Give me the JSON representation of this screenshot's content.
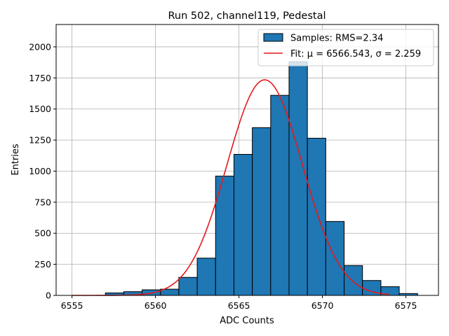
{
  "chart_data": {
    "type": "bar",
    "title": "Run 502, channel119, Pedestal",
    "xlabel": "ADC Counts",
    "ylabel": "Entries",
    "xlim": [
      6554.05,
      6576.95
    ],
    "ylim": [
      0,
      2180
    ],
    "xticks": [
      6555,
      6560,
      6565,
      6570,
      6575
    ],
    "yticks": [
      0,
      250,
      500,
      750,
      1000,
      1250,
      1500,
      1750,
      2000
    ],
    "grid": true,
    "legend_position": "top-right",
    "bar_color": "#1f77b4",
    "fit_color": "#e41a1c",
    "histogram": {
      "name": "Samples: RMS=2.34",
      "bin_width": 1.1,
      "bins": [
        {
          "start": 6557.0,
          "count": 20
        },
        {
          "start": 6558.1,
          "count": 30
        },
        {
          "start": 6559.2,
          "count": 45
        },
        {
          "start": 6560.3,
          "count": 50
        },
        {
          "start": 6561.4,
          "count": 145
        },
        {
          "start": 6562.5,
          "count": 300
        },
        {
          "start": 6563.6,
          "count": 960
        },
        {
          "start": 6564.7,
          "count": 1135
        },
        {
          "start": 6565.8,
          "count": 1350
        },
        {
          "start": 6566.9,
          "count": 1610
        },
        {
          "start": 6568.0,
          "count": 1880
        },
        {
          "start": 6569.1,
          "count": 1265
        },
        {
          "start": 6570.2,
          "count": 595
        },
        {
          "start": 6571.3,
          "count": 240
        },
        {
          "start": 6572.4,
          "count": 120
        },
        {
          "start": 6573.5,
          "count": 70
        },
        {
          "start": 6574.6,
          "count": 15
        }
      ]
    },
    "fit": {
      "name": "Fit: μ = 6566.543, σ = 2.259",
      "label_prefix": "Fit: ",
      "mu_label": "μ = 6566.543",
      "sigma_label": "σ = 2.259",
      "mu": 6566.543,
      "sigma": 2.259,
      "amplitude": 1735,
      "x_range": [
        6555,
        6574
      ]
    }
  }
}
